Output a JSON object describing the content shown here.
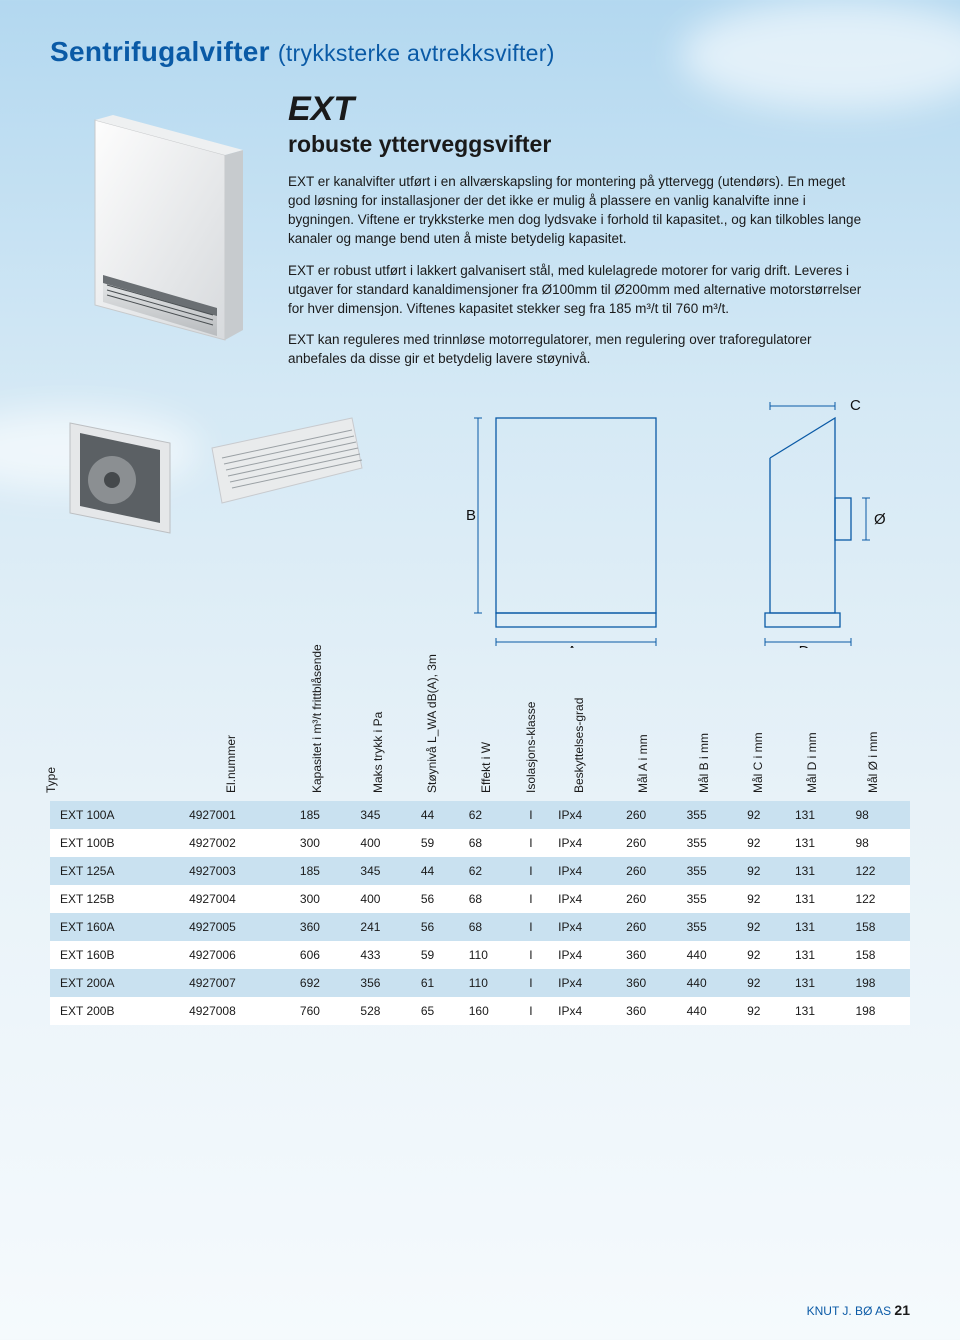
{
  "header": {
    "title_main": "Sentrifugalvifter",
    "title_sub": "(trykksterke avtrekksvifter)"
  },
  "hero": {
    "h2": "EXT",
    "h3": "robuste ytterveggsvifter",
    "p1": "EXT er kanalvifter utført i en allværskapsling for montering på yttervegg (utendørs). En meget god løsning for installasjoner der det ikke er mulig å plassere en vanlig kanalvifte inne i bygningen. Viftene er trykksterke men dog lydsvake i forhold til kapasitet., og kan tilkobles lange kanaler og mange bend uten å miste betydelig kapasitet.",
    "p2": "EXT er robust utført i lakkert galvanisert stål, med kulelagrede motorer for varig drift. Leveres i utgaver for standard kanaldimensjoner fra Ø100mm til Ø200mm med alternative motorstørrelser for hver dimensjon. Viftenes kapasitet stekker seg fra 185 m³/t til 760 m³/t.",
    "p3": "EXT kan reguleres med trinnløse motorregulatorer, men regulering over traforegulatorer anbefales da disse gir et betydelig lavere støynivå."
  },
  "diagram_labels": {
    "A": "A",
    "B": "B",
    "C": "C",
    "D": "D",
    "O": "Ø"
  },
  "table": {
    "columns": [
      "Type",
      "El.nummer",
      "Kapasitet i m³/t frittblåsende",
      "Maks trykk i Pa",
      "Støynivå L_WA dB(A), 3m",
      "Effekt i W",
      "Isolasjons-klasse",
      "Beskyttelses-grad",
      "Mål A i mm",
      "Mål B i mm",
      "Mål C i mm",
      "Mål D i mm",
      "Mål Ø i mm"
    ],
    "rows": [
      [
        "EXT 100A",
        "4927001",
        "185",
        "345",
        "44",
        "62",
        "I",
        "IPx4",
        "260",
        "355",
        "92",
        "131",
        "98"
      ],
      [
        "EXT 100B",
        "4927002",
        "300",
        "400",
        "59",
        "68",
        "I",
        "IPx4",
        "260",
        "355",
        "92",
        "131",
        "98"
      ],
      [
        "EXT 125A",
        "4927003",
        "185",
        "345",
        "44",
        "62",
        "I",
        "IPx4",
        "260",
        "355",
        "92",
        "131",
        "122"
      ],
      [
        "EXT 125B",
        "4927004",
        "300",
        "400",
        "56",
        "68",
        "I",
        "IPx4",
        "260",
        "355",
        "92",
        "131",
        "122"
      ],
      [
        "EXT 160A",
        "4927005",
        "360",
        "241",
        "56",
        "68",
        "I",
        "IPx4",
        "260",
        "355",
        "92",
        "131",
        "158"
      ],
      [
        "EXT 160B",
        "4927006",
        "606",
        "433",
        "59",
        "110",
        "I",
        "IPx4",
        "360",
        "440",
        "92",
        "131",
        "158"
      ],
      [
        "EXT 200A",
        "4927007",
        "692",
        "356",
        "61",
        "110",
        "I",
        "IPx4",
        "360",
        "440",
        "92",
        "131",
        "198"
      ],
      [
        "EXT 200B",
        "4927008",
        "760",
        "528",
        "65",
        "160",
        "I",
        "IPx4",
        "360",
        "440",
        "92",
        "131",
        "198"
      ]
    ]
  },
  "footer": {
    "brand": "KNUT J. BØ AS",
    "page": "21"
  },
  "colors": {
    "accent": "#0a5aa6",
    "row_alt": "#c9e1f0",
    "diagram_stroke": "#0a5aa6"
  }
}
